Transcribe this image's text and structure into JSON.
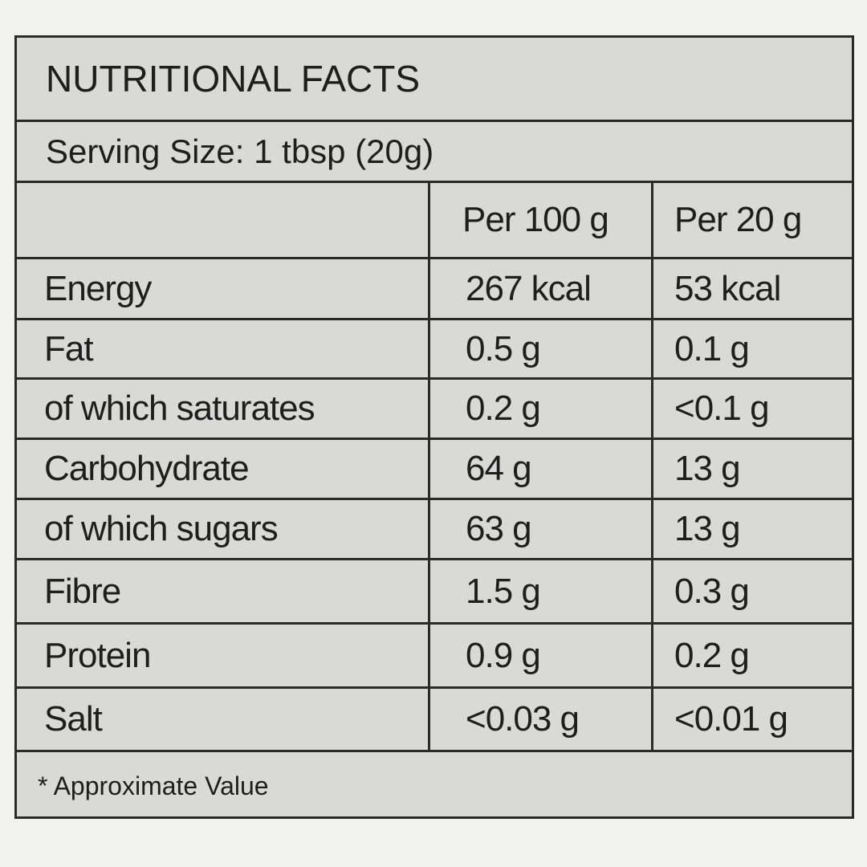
{
  "title": "NUTRITIONAL FACTS",
  "serving_size": "Serving Size: 1 tbsp (20g)",
  "columns": [
    "",
    "Per 100 g",
    "Per 20 g"
  ],
  "rows": [
    {
      "nutrient": "Energy",
      "per_100g": "267 kcal",
      "per_20g": "53 kcal"
    },
    {
      "nutrient": "Fat",
      "per_100g": "0.5 g",
      "per_20g": "0.1 g"
    },
    {
      "nutrient": "of which saturates",
      "per_100g": "0.2 g",
      "per_20g": "<0.1 g"
    },
    {
      "nutrient": "Carbohydrate",
      "per_100g": "64 g",
      "per_20g": "13 g"
    },
    {
      "nutrient": "of which sugars",
      "per_100g": "63 g",
      "per_20g": "13 g"
    },
    {
      "nutrient": "Fibre",
      "per_100g": "1.5 g",
      "per_20g": "0.3 g"
    },
    {
      "nutrient": "Protein",
      "per_100g": "0.9 g",
      "per_20g": "0.2 g"
    },
    {
      "nutrient": "Salt",
      "per_100g": "<0.03 g",
      "per_20g": "<0.01 g"
    }
  ],
  "footnote": "* Approximate Value"
}
